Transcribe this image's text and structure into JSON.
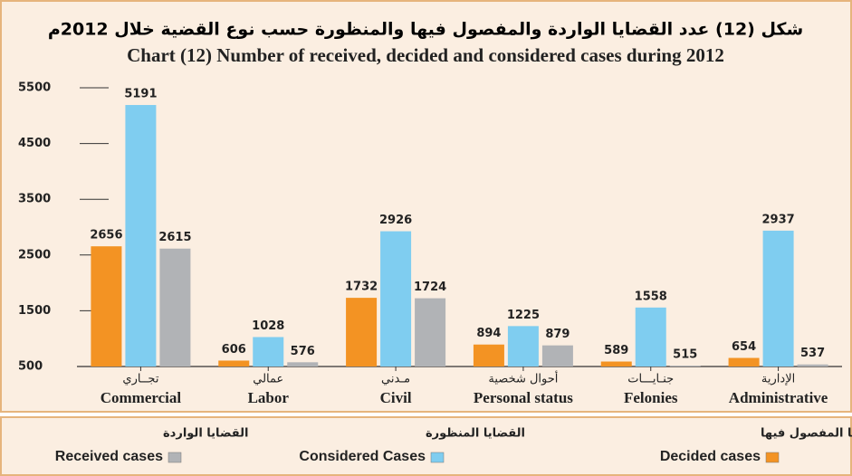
{
  "chart_data": {
    "type": "bar",
    "title_ar": "شكل (12) عدد القضايا الواردة والمفصول فيها والمنظورة  حسب نوع القضية خلال 2012م",
    "title": "Chart (12) Number of received, decided and considered cases during 2012",
    "categories": [
      "Commercial",
      "Labor",
      "Civil",
      "Personal status",
      "Felonies",
      "Administrative"
    ],
    "categories_ar": [
      "تجــاري",
      "عمالي",
      "مـدني",
      "أحوال شخصية",
      "جنـايـــات",
      "الإدارية"
    ],
    "series": [
      {
        "name": "Decided cases",
        "name_ar": "القضايا المفصول فيها",
        "color": "#f39323",
        "values": [
          2656,
          606,
          1732,
          894,
          589,
          654
        ]
      },
      {
        "name": "Considered Cases",
        "name_ar": "القضايا المنظورة",
        "color": "#7fcdf0",
        "values": [
          5191,
          1028,
          2926,
          1225,
          1558,
          2937
        ]
      },
      {
        "name": "Received cases",
        "name_ar": "القضايا الواردة",
        "color": "#b1b3b6",
        "values": [
          2615,
          576,
          1724,
          879,
          515,
          537
        ]
      }
    ],
    "ylim": [
      500,
      5500
    ],
    "yticks": [
      500,
      1500,
      2500,
      3500,
      4500,
      5500
    ]
  }
}
